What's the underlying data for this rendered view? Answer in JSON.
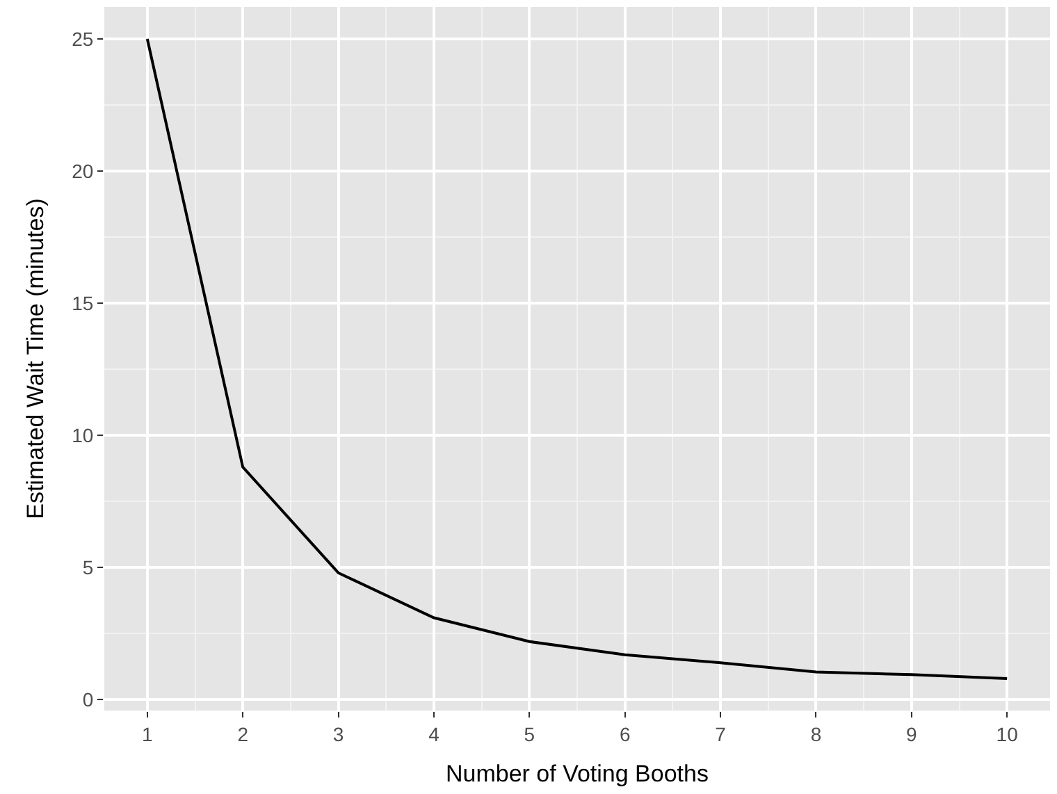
{
  "chart_data": {
    "type": "line",
    "xlabel": "Number of Voting Booths",
    "ylabel": "Estimated Wait Time (minutes)",
    "x": [
      1,
      2,
      3,
      4,
      5,
      6,
      7,
      8,
      9,
      10
    ],
    "series": [
      {
        "color": "#000000",
        "values": [
          25,
          8.8,
          4.8,
          3.1,
          2.2,
          1.7,
          1.4,
          1.05,
          0.95,
          0.8
        ]
      }
    ],
    "xlim": [
      0.55,
      10.45
    ],
    "xticks": [
      1,
      2,
      3,
      4,
      5,
      6,
      7,
      8,
      9,
      10
    ],
    "ylim": [
      -0.41,
      26.21
    ],
    "yticks": [
      0,
      5,
      10,
      15,
      20,
      25
    ],
    "grid": true,
    "marker": "none",
    "line_style": "solid"
  }
}
